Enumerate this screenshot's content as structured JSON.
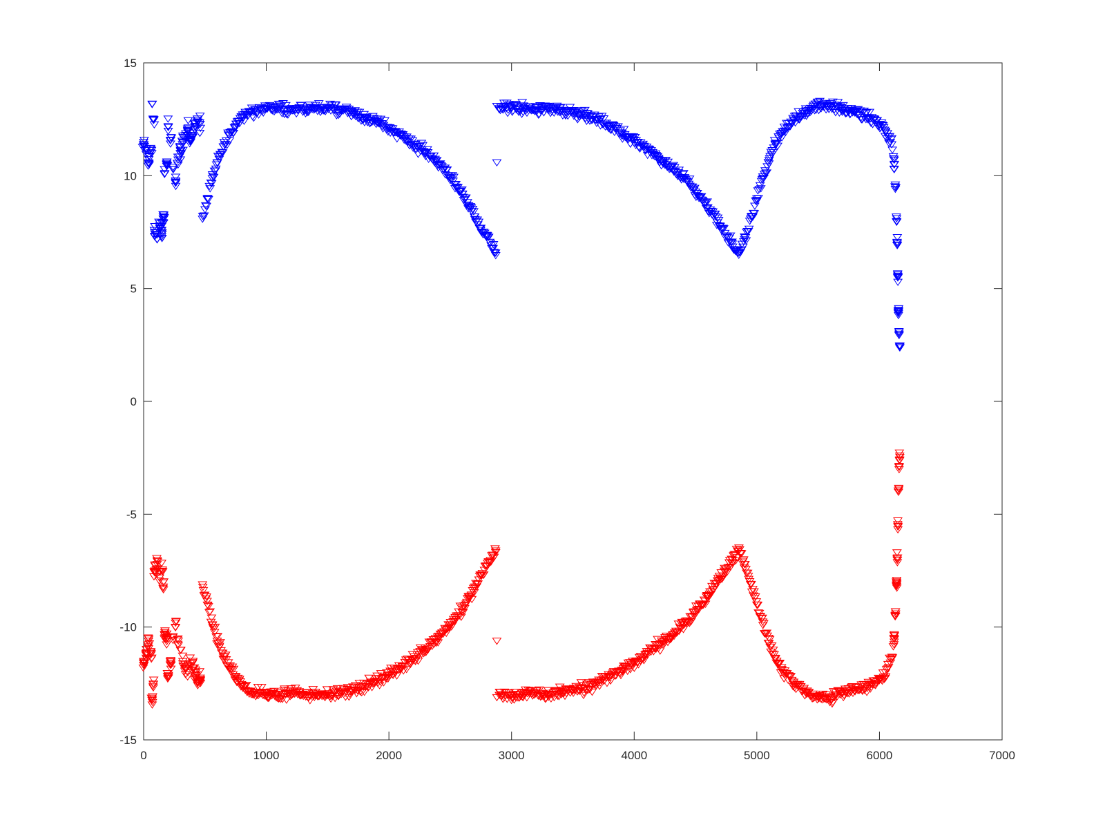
{
  "chart_data": {
    "type": "scatter",
    "title": "",
    "xlabel": "",
    "ylabel": "",
    "xlim": [
      0,
      7000
    ],
    "ylim": [
      -15,
      15
    ],
    "x_ticks": [
      0,
      1000,
      2000,
      3000,
      4000,
      5000,
      6000,
      7000
    ],
    "y_ticks": [
      -15,
      -10,
      -5,
      0,
      5,
      10,
      15
    ],
    "x_tick_labels": [
      "0",
      "1000",
      "2000",
      "3000",
      "4000",
      "5000",
      "6000",
      "7000"
    ],
    "y_tick_labels": [
      "-15",
      "-10",
      "-5",
      "0",
      "5",
      "10",
      "15"
    ],
    "grid": false,
    "marker": "downward-triangle",
    "series": [
      {
        "color": "#0000ff",
        "points": [
          [
            0,
            11.5
          ],
          [
            20,
            11.2
          ],
          [
            40,
            10.6
          ],
          [
            60,
            11.2
          ],
          [
            70,
            13.2
          ],
          [
            80,
            12.5
          ],
          [
            90,
            7.5
          ],
          [
            110,
            7.2
          ],
          [
            130,
            7.8
          ],
          [
            150,
            7.5
          ],
          [
            160,
            8.2
          ],
          [
            170,
            10.3
          ],
          [
            190,
            10.5
          ],
          [
            200,
            12.2
          ],
          [
            220,
            11.6
          ],
          [
            240,
            10.4
          ],
          [
            260,
            9.8
          ],
          [
            280,
            10.5
          ],
          [
            300,
            11.0
          ],
          [
            320,
            11.5
          ],
          [
            340,
            11.8
          ],
          [
            360,
            12.0
          ],
          [
            380,
            11.6
          ],
          [
            400,
            11.8
          ],
          [
            420,
            12.2
          ],
          [
            440,
            12.4
          ],
          [
            460,
            12.3
          ],
          [
            480,
            8.1
          ],
          [
            520,
            9.0
          ],
          [
            560,
            9.9
          ],
          [
            600,
            10.6
          ],
          [
            650,
            11.3
          ],
          [
            700,
            11.8
          ],
          [
            750,
            12.2
          ],
          [
            800,
            12.6
          ],
          [
            900,
            12.9
          ],
          [
            1000,
            13.0
          ],
          [
            1100,
            13.0
          ],
          [
            1200,
            12.9
          ],
          [
            1300,
            12.95
          ],
          [
            1400,
            13.0
          ],
          [
            1500,
            13.0
          ],
          [
            1600,
            12.9
          ],
          [
            1700,
            12.8
          ],
          [
            1800,
            12.6
          ],
          [
            1900,
            12.4
          ],
          [
            2000,
            12.1
          ],
          [
            2100,
            11.8
          ],
          [
            2200,
            11.4
          ],
          [
            2300,
            11.0
          ],
          [
            2400,
            10.5
          ],
          [
            2500,
            9.9
          ],
          [
            2600,
            9.2
          ],
          [
            2650,
            8.7
          ],
          [
            2700,
            8.2
          ],
          [
            2750,
            7.7
          ],
          [
            2800,
            7.3
          ],
          [
            2850,
            6.8
          ],
          [
            2870,
            6.6
          ],
          [
            2880,
            10.6
          ],
          [
            2880,
            13.1
          ],
          [
            2900,
            13.0
          ],
          [
            3000,
            13.0
          ],
          [
            3100,
            13.0
          ],
          [
            3200,
            12.9
          ],
          [
            3300,
            13.0
          ],
          [
            3400,
            12.9
          ],
          [
            3500,
            12.8
          ],
          [
            3600,
            12.7
          ],
          [
            3700,
            12.5
          ],
          [
            3800,
            12.2
          ],
          [
            3900,
            11.9
          ],
          [
            4000,
            11.6
          ],
          [
            4100,
            11.2
          ],
          [
            4200,
            10.8
          ],
          [
            4300,
            10.4
          ],
          [
            4400,
            9.9
          ],
          [
            4500,
            9.3
          ],
          [
            4600,
            8.6
          ],
          [
            4700,
            7.8
          ],
          [
            4800,
            7.0
          ],
          [
            4850,
            6.6
          ],
          [
            4900,
            7.2
          ],
          [
            4950,
            8.1
          ],
          [
            5000,
            9.0
          ],
          [
            5050,
            9.9
          ],
          [
            5100,
            10.7
          ],
          [
            5150,
            11.4
          ],
          [
            5200,
            11.9
          ],
          [
            5300,
            12.5
          ],
          [
            5400,
            12.9
          ],
          [
            5500,
            13.1
          ],
          [
            5600,
            13.1
          ],
          [
            5700,
            12.9
          ],
          [
            5800,
            12.8
          ],
          [
            5900,
            12.6
          ],
          [
            6000,
            12.3
          ],
          [
            6050,
            12.0
          ],
          [
            6100,
            11.4
          ],
          [
            6120,
            10.5
          ],
          [
            6130,
            9.5
          ],
          [
            6140,
            8.0
          ],
          [
            6145,
            7.0
          ],
          [
            6150,
            5.5
          ],
          [
            6155,
            4.0
          ],
          [
            6160,
            3.0
          ],
          [
            6165,
            2.4
          ]
        ]
      },
      {
        "color": "#ff0000",
        "points": [
          [
            0,
            -11.5
          ],
          [
            20,
            -11.2
          ],
          [
            40,
            -10.6
          ],
          [
            60,
            -11.2
          ],
          [
            70,
            -13.2
          ],
          [
            80,
            -12.5
          ],
          [
            90,
            -7.5
          ],
          [
            110,
            -7.2
          ],
          [
            130,
            -7.8
          ],
          [
            150,
            -7.5
          ],
          [
            160,
            -8.2
          ],
          [
            170,
            -10.3
          ],
          [
            190,
            -10.5
          ],
          [
            200,
            -12.2
          ],
          [
            220,
            -11.6
          ],
          [
            240,
            -10.4
          ],
          [
            260,
            -9.8
          ],
          [
            280,
            -10.5
          ],
          [
            300,
            -11.0
          ],
          [
            320,
            -11.5
          ],
          [
            340,
            -11.8
          ],
          [
            360,
            -12.0
          ],
          [
            380,
            -11.6
          ],
          [
            400,
            -11.8
          ],
          [
            420,
            -12.2
          ],
          [
            440,
            -12.4
          ],
          [
            460,
            -12.3
          ],
          [
            480,
            -8.1
          ],
          [
            520,
            -9.0
          ],
          [
            560,
            -9.9
          ],
          [
            600,
            -10.6
          ],
          [
            650,
            -11.3
          ],
          [
            700,
            -11.8
          ],
          [
            750,
            -12.2
          ],
          [
            800,
            -12.6
          ],
          [
            900,
            -12.9
          ],
          [
            1000,
            -13.0
          ],
          [
            1100,
            -13.0
          ],
          [
            1200,
            -12.9
          ],
          [
            1300,
            -12.95
          ],
          [
            1400,
            -13.0
          ],
          [
            1500,
            -13.0
          ],
          [
            1600,
            -12.9
          ],
          [
            1700,
            -12.8
          ],
          [
            1800,
            -12.6
          ],
          [
            1900,
            -12.4
          ],
          [
            2000,
            -12.1
          ],
          [
            2100,
            -11.8
          ],
          [
            2200,
            -11.4
          ],
          [
            2300,
            -11.0
          ],
          [
            2400,
            -10.5
          ],
          [
            2500,
            -9.9
          ],
          [
            2600,
            -9.2
          ],
          [
            2650,
            -8.7
          ],
          [
            2700,
            -8.2
          ],
          [
            2750,
            -7.7
          ],
          [
            2800,
            -7.3
          ],
          [
            2850,
            -6.8
          ],
          [
            2870,
            -6.6
          ],
          [
            2880,
            -10.6
          ],
          [
            2880,
            -13.1
          ],
          [
            2900,
            -13.0
          ],
          [
            3000,
            -13.0
          ],
          [
            3100,
            -13.0
          ],
          [
            3200,
            -12.9
          ],
          [
            3300,
            -13.0
          ],
          [
            3400,
            -12.9
          ],
          [
            3500,
            -12.8
          ],
          [
            3600,
            -12.7
          ],
          [
            3700,
            -12.5
          ],
          [
            3800,
            -12.2
          ],
          [
            3900,
            -11.9
          ],
          [
            4000,
            -11.6
          ],
          [
            4100,
            -11.2
          ],
          [
            4200,
            -10.8
          ],
          [
            4300,
            -10.4
          ],
          [
            4400,
            -9.9
          ],
          [
            4500,
            -9.3
          ],
          [
            4600,
            -8.6
          ],
          [
            4700,
            -7.8
          ],
          [
            4800,
            -7.0
          ],
          [
            4850,
            -6.6
          ],
          [
            4900,
            -7.2
          ],
          [
            4950,
            -8.1
          ],
          [
            5000,
            -9.0
          ],
          [
            5050,
            -9.9
          ],
          [
            5100,
            -10.7
          ],
          [
            5150,
            -11.4
          ],
          [
            5200,
            -11.9
          ],
          [
            5300,
            -12.5
          ],
          [
            5400,
            -12.9
          ],
          [
            5500,
            -13.1
          ],
          [
            5600,
            -13.1
          ],
          [
            5700,
            -12.9
          ],
          [
            5800,
            -12.8
          ],
          [
            5900,
            -12.6
          ],
          [
            6000,
            -12.3
          ],
          [
            6050,
            -12.0
          ],
          [
            6100,
            -11.4
          ],
          [
            6120,
            -10.5
          ],
          [
            6130,
            -9.5
          ],
          [
            6140,
            -8.0
          ],
          [
            6145,
            -7.0
          ],
          [
            6150,
            -5.5
          ],
          [
            6155,
            -4.0
          ],
          [
            6160,
            -3.0
          ],
          [
            6165,
            -2.4
          ]
        ]
      }
    ]
  }
}
